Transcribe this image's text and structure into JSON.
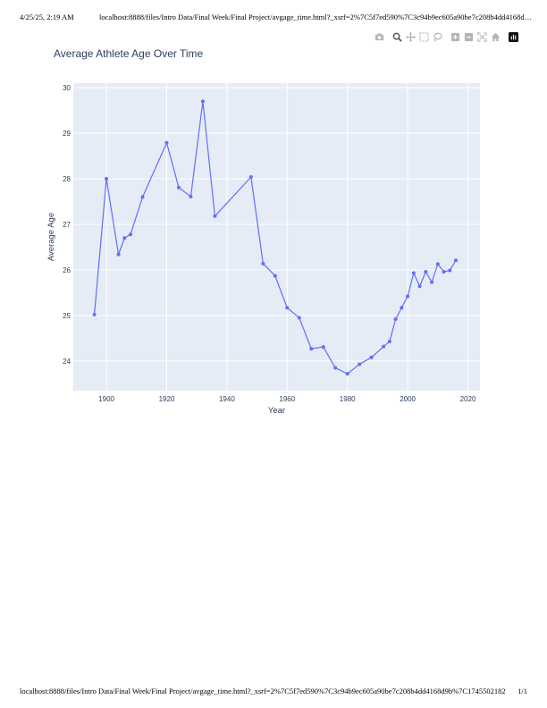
{
  "print": {
    "header_datetime": "4/25/25, 2:19 AM",
    "header_url": "localhost:8888/files/Intro Data/Final Week/Final Project/avgage_time.html?_xsrf=2%7C5f7ed590%7C3c94b9ec605a90be7c208b4dd4168d9b%7...",
    "footer_url": "localhost:8888/files/Intro Data/Final Week/Final Project/avgage_time.html?_xsrf=2%7C5f7ed590%7C3c94b9ec605a90be7c208b4dd4168d9b%7C1745502182",
    "footer_page": "1/1"
  },
  "modebar": {
    "buttons": [
      {
        "icon": "camera-icon"
      },
      {
        "icon": "zoom-icon"
      },
      {
        "icon": "pan-icon"
      },
      {
        "icon": "box-select-icon"
      },
      {
        "icon": "lasso-select-icon"
      },
      {
        "icon": "zoom-in-icon"
      },
      {
        "icon": "zoom-out-icon"
      },
      {
        "icon": "autoscale-icon"
      },
      {
        "icon": "home-icon"
      },
      {
        "icon": "plotly-logo-icon"
      }
    ]
  },
  "colors": {
    "line": "#636efa",
    "plot_bg": "#e5ecf6",
    "grid": "#ffffff",
    "text": "#2a3f5f",
    "modebar_icon": "#b4b4b4"
  },
  "chart_data": {
    "type": "line",
    "title": "Average Athlete Age Over Time",
    "xlabel": "Year",
    "ylabel": "Average Age",
    "xlim": [
      1889,
      2024
    ],
    "ylim": [
      23.35,
      30.1
    ],
    "xticks": [
      1900,
      1920,
      1940,
      1960,
      1980,
      2000,
      2020
    ],
    "yticks": [
      24,
      25,
      26,
      27,
      28,
      29,
      30
    ],
    "grid": true,
    "series": [
      {
        "mode": "lines+markers",
        "x": [
          1896,
          1900,
          1904,
          1906,
          1908,
          1912,
          1920,
          1924,
          1928,
          1932,
          1936,
          1948,
          1952,
          1956,
          1960,
          1964,
          1968,
          1972,
          1976,
          1980,
          1984,
          1988,
          1992,
          1994,
          1996,
          1998,
          2000,
          2002,
          2004,
          2006,
          2008,
          2010,
          2012,
          2014,
          2016
        ],
        "y": [
          25.02,
          28.0,
          26.34,
          26.7,
          26.78,
          27.6,
          28.79,
          27.81,
          27.61,
          29.7,
          27.18,
          28.04,
          26.14,
          25.87,
          25.17,
          24.95,
          24.27,
          24.31,
          23.85,
          23.72,
          23.93,
          24.08,
          24.32,
          24.43,
          24.92,
          25.17,
          25.42,
          25.93,
          25.64,
          25.96,
          25.73,
          26.13,
          25.96,
          25.99,
          26.21
        ]
      }
    ]
  }
}
